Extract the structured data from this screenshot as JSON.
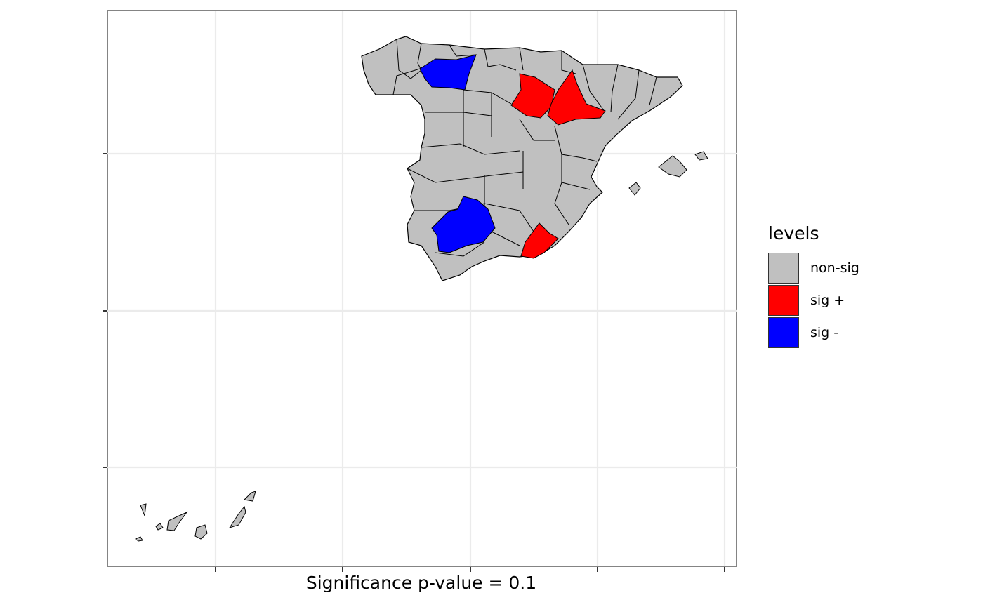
{
  "plot": {
    "caption": "Significance p-value = 0.1"
  },
  "legend": {
    "title": "levels",
    "items": [
      {
        "label": "non-sig",
        "color": "#c0c0c0"
      },
      {
        "label": "sig +",
        "color": "#ff0000"
      },
      {
        "label": "sig -",
        "color": "#0000ff"
      }
    ]
  },
  "map": {
    "region": "Spain provinces",
    "region_counts": {
      "non-sig": 45,
      "sig +": 3,
      "sig -": 2
    },
    "sig_plus_regions": [
      "Zaragoza",
      "Soria",
      "Almería"
    ],
    "sig_minus_regions": [
      "León",
      "Córdoba"
    ],
    "x_tick_count": 5,
    "y_tick_count": 3,
    "grid": true,
    "legend_position": "right"
  }
}
